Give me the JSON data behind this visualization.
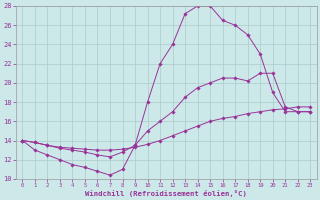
{
  "xlabel": "Windchill (Refroidissement éolien,°C)",
  "background_color": "#cce8e8",
  "line_color": "#993399",
  "grid_color": "#aacccc",
  "xlim": [
    -0.5,
    23.5
  ],
  "ylim": [
    10,
    28
  ],
  "xticks": [
    0,
    1,
    2,
    3,
    4,
    5,
    6,
    7,
    8,
    9,
    10,
    11,
    12,
    13,
    14,
    15,
    16,
    17,
    18,
    19,
    20,
    21,
    22,
    23
  ],
  "yticks": [
    10,
    12,
    14,
    16,
    18,
    20,
    22,
    24,
    26,
    28
  ],
  "line1_x": [
    0,
    1,
    2,
    3,
    4,
    5,
    6,
    7,
    8,
    9,
    10,
    11,
    12,
    13,
    14,
    15,
    16,
    17,
    18,
    19,
    20,
    21,
    22,
    23
  ],
  "line1_y": [
    14.0,
    13.0,
    12.5,
    12.0,
    11.5,
    11.2,
    10.8,
    10.4,
    11.0,
    13.5,
    18.0,
    22.0,
    24.0,
    27.2,
    28.0,
    28.0,
    26.5,
    26.0,
    25.0,
    23.0,
    19.0,
    17.0,
    17.0,
    17.0
  ],
  "line2_x": [
    0,
    1,
    2,
    3,
    4,
    5,
    6,
    7,
    8,
    9,
    10,
    11,
    12,
    13,
    14,
    15,
    16,
    17,
    18,
    19,
    20,
    21,
    22,
    23
  ],
  "line2_y": [
    14.0,
    13.8,
    13.5,
    13.2,
    13.0,
    12.8,
    12.5,
    12.3,
    12.8,
    13.5,
    15.0,
    16.0,
    17.0,
    18.5,
    19.5,
    20.0,
    20.5,
    20.5,
    20.2,
    21.0,
    21.0,
    17.5,
    17.0,
    17.0
  ],
  "line3_x": [
    0,
    1,
    2,
    3,
    4,
    5,
    6,
    7,
    8,
    9,
    10,
    11,
    12,
    13,
    14,
    15,
    16,
    17,
    18,
    19,
    20,
    21,
    22,
    23
  ],
  "line3_y": [
    14.0,
    13.8,
    13.5,
    13.3,
    13.2,
    13.1,
    13.0,
    13.0,
    13.1,
    13.3,
    13.6,
    14.0,
    14.5,
    15.0,
    15.5,
    16.0,
    16.3,
    16.5,
    16.8,
    17.0,
    17.2,
    17.3,
    17.5,
    17.5
  ]
}
